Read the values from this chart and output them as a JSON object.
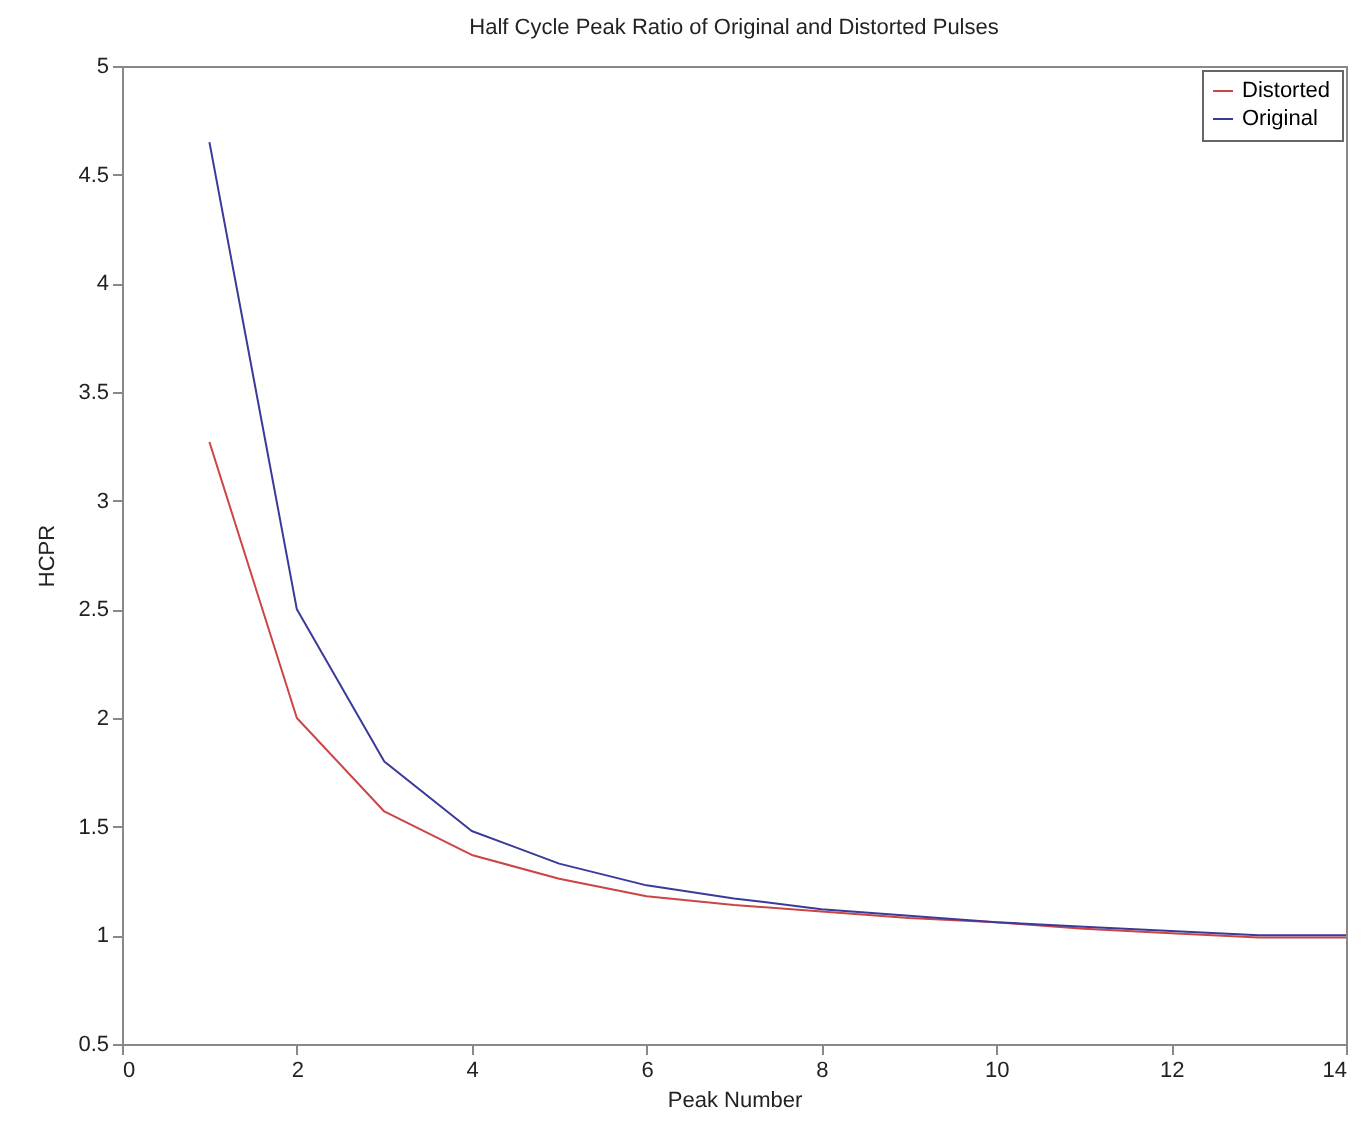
{
  "chart_data": {
    "type": "line",
    "title": "Half Cycle Peak Ratio of Original and Distorted Pulses",
    "xlabel": "Peak Number",
    "ylabel": "HCPR",
    "x": [
      1,
      2,
      3,
      4,
      5,
      6,
      7,
      8,
      9,
      10,
      11,
      12,
      13,
      14
    ],
    "series": [
      {
        "name": "Distorted",
        "color": "#cc4444",
        "values": [
          3.27,
          2.0,
          1.57,
          1.37,
          1.26,
          1.18,
          1.14,
          1.11,
          1.08,
          1.06,
          1.03,
          1.01,
          0.99,
          0.99
        ]
      },
      {
        "name": "Original",
        "color": "#3a3a9a",
        "values": [
          4.65,
          2.5,
          1.8,
          1.48,
          1.33,
          1.23,
          1.17,
          1.12,
          1.09,
          1.06,
          1.04,
          1.02,
          1.0,
          1.0
        ]
      }
    ],
    "xlim": [
      0,
      14
    ],
    "xticks": [
      0,
      2,
      4,
      6,
      8,
      10,
      12,
      14
    ],
    "ylim": [
      0.5,
      5
    ],
    "yticks": [
      0.5,
      1,
      1.5,
      2,
      2.5,
      3,
      3.5,
      4,
      4.5,
      5
    ],
    "grid": false,
    "legend": "top right",
    "marker": "none",
    "line_style": "solid"
  }
}
